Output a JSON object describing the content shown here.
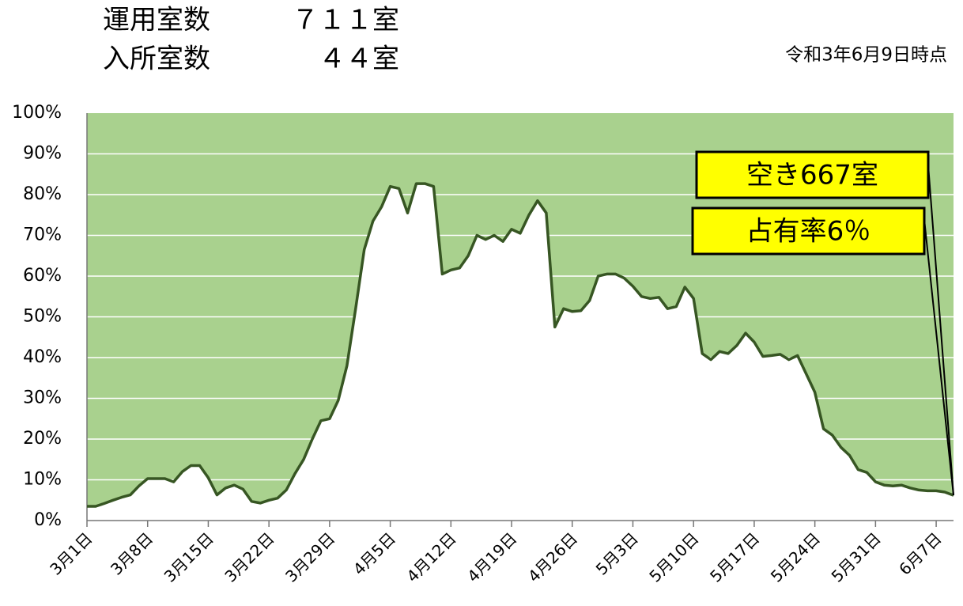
{
  "chart_data": {
    "type": "area",
    "summary": [
      {
        "label": "運用室数",
        "value": "７１１室"
      },
      {
        "label": "入所室数",
        "value": "４４室"
      }
    ],
    "date_note": "令和3年6月9日時点",
    "annotations": [
      "空き667室",
      "占有率6％"
    ],
    "categories": [
      "3月1日",
      null,
      null,
      null,
      null,
      null,
      null,
      "3月8日",
      null,
      null,
      null,
      null,
      null,
      null,
      "3月15日",
      null,
      null,
      null,
      null,
      null,
      null,
      "3月22日",
      null,
      null,
      null,
      null,
      null,
      null,
      "3月29日",
      null,
      null,
      null,
      null,
      null,
      null,
      "4月5日",
      null,
      null,
      null,
      null,
      null,
      null,
      "4月12日",
      null,
      null,
      null,
      null,
      null,
      null,
      "4月19日",
      null,
      null,
      null,
      null,
      null,
      null,
      "4月26日",
      null,
      null,
      null,
      null,
      null,
      null,
      "5月3日",
      null,
      null,
      null,
      null,
      null,
      null,
      "5月10日",
      null,
      null,
      null,
      null,
      null,
      null,
      "5月17日",
      null,
      null,
      null,
      null,
      null,
      null,
      "5月24日",
      null,
      null,
      null,
      null,
      null,
      null,
      "5月31日",
      null,
      null,
      null,
      null,
      null,
      null,
      "6月7日",
      null,
      null
    ],
    "values": [
      3.5,
      3.5,
      4.2,
      5,
      5.7,
      6.3,
      8.5,
      10.3,
      10.3,
      10.3,
      9.5,
      12,
      13.5,
      13.5,
      10.5,
      6.3,
      8,
      8.7,
      7.7,
      4.7,
      4.3,
      5,
      5.5,
      7.5,
      11.5,
      15,
      20,
      24.5,
      25,
      29.5,
      38,
      52,
      66.5,
      73.5,
      77,
      82,
      81.5,
      75.5,
      82.7,
      82.7,
      82,
      60.5,
      61.5,
      62,
      65,
      70,
      69,
      70,
      68.5,
      71.5,
      70.5,
      75,
      78.5,
      75.5,
      47.5,
      52,
      51.3,
      51.5,
      54,
      60,
      60.5,
      60.5,
      59.5,
      57.5,
      55,
      54.5,
      54.8,
      52,
      52.5,
      57.3,
      54.5,
      41,
      39.5,
      41.5,
      41,
      43,
      46,
      43.8,
      40.3,
      40.5,
      40.8,
      39.5,
      40.5,
      36,
      31.5,
      22.5,
      21,
      18,
      16,
      12.5,
      11.8,
      9.5,
      8.7,
      8.5,
      8.7,
      8,
      7.5,
      7.3,
      7.3,
      7,
      6.2
    ],
    "color": "#375623",
    "background_color": "#a9d18e",
    "ylim": [
      0,
      100
    ],
    "yticks": [
      {
        "value": 0,
        "label": "0%"
      },
      {
        "value": 10,
        "label": "10%"
      },
      {
        "value": 20,
        "label": "20%"
      },
      {
        "value": 30,
        "label": "30%"
      },
      {
        "value": 40,
        "label": "40%"
      },
      {
        "value": 50,
        "label": "50%"
      },
      {
        "value": 60,
        "label": "60%"
      },
      {
        "value": 70,
        "label": "70%"
      },
      {
        "value": 80,
        "label": "80%"
      },
      {
        "value": 90,
        "label": "90%"
      },
      {
        "value": 100,
        "label": "100%"
      }
    ],
    "grid": true
  }
}
